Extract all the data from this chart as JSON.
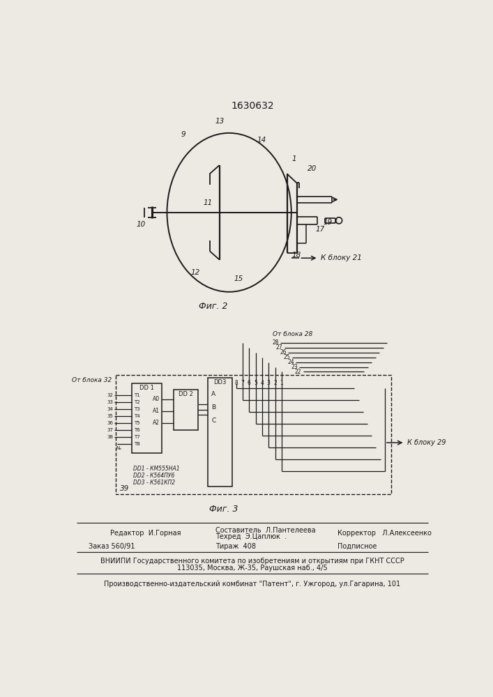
{
  "patent_number": "1630632",
  "fig2_label": "Фиг. 2",
  "fig3_label": "Фиг. 3",
  "footer_editor": "Редактор  И.Горная",
  "footer_author": "Составитель  Л.Пантелеева",
  "footer_tech": "Техред  Э.Цаплюк  .",
  "footer_corrector": "Корректор   Л.Алексеенко",
  "footer_order": "Заказ 560/91",
  "footer_tirazh": "Тираж  408",
  "footer_podpis": "Подписное",
  "footer_vniipи": "ВНИИПИ Государственного комитета по изобретениям и открытиям при ГКНТ СССР",
  "footer_addr": "113035, Москва, Ж-35, Раушская наб., 4/5",
  "footer_zavod": "Производственно-издательский комбинат \"Патент\", г. Ужгород, ул.Гагарина, 101",
  "bg_color": "#ede9e3",
  "line_color": "#1a1a1a"
}
